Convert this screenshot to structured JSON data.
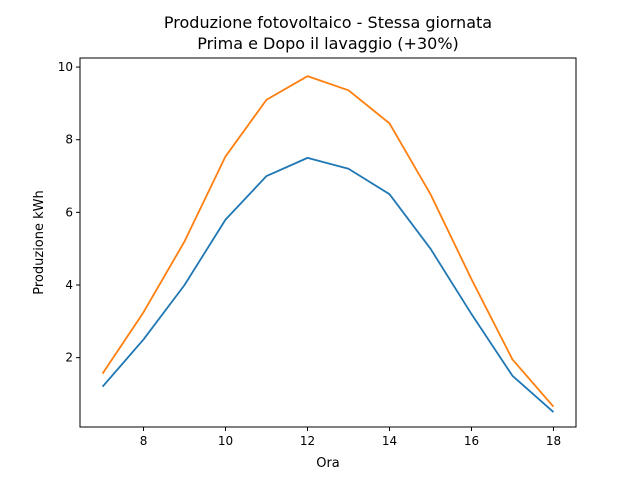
{
  "chart_data": {
    "type": "line",
    "title_lines": [
      "Produzione fotovoltaico - Stessa giornata",
      "Prima e Dopo il lavaggio (+30%)"
    ],
    "xlabel": "Ora",
    "ylabel": "Produzione kWh",
    "x": [
      7,
      8,
      9,
      10,
      11,
      12,
      13,
      14,
      15,
      16,
      17,
      18
    ],
    "xlim": [
      6.45,
      18.55
    ],
    "ylim": [
      0.09,
      10.25
    ],
    "xticks": [
      8,
      10,
      12,
      14,
      16,
      18
    ],
    "yticks": [
      2,
      4,
      6,
      8,
      10
    ],
    "grid": false,
    "series": [
      {
        "color": "#1f77b4",
        "values": [
          1.2,
          2.5,
          4.0,
          5.8,
          7.0,
          7.5,
          7.2,
          6.5,
          5.0,
          3.2,
          1.5,
          0.5
        ]
      },
      {
        "color": "#ff7f0e",
        "values": [
          1.56,
          3.25,
          5.2,
          7.54,
          9.1,
          9.75,
          9.36,
          8.45,
          6.5,
          4.16,
          1.95,
          0.65
        ]
      }
    ]
  }
}
